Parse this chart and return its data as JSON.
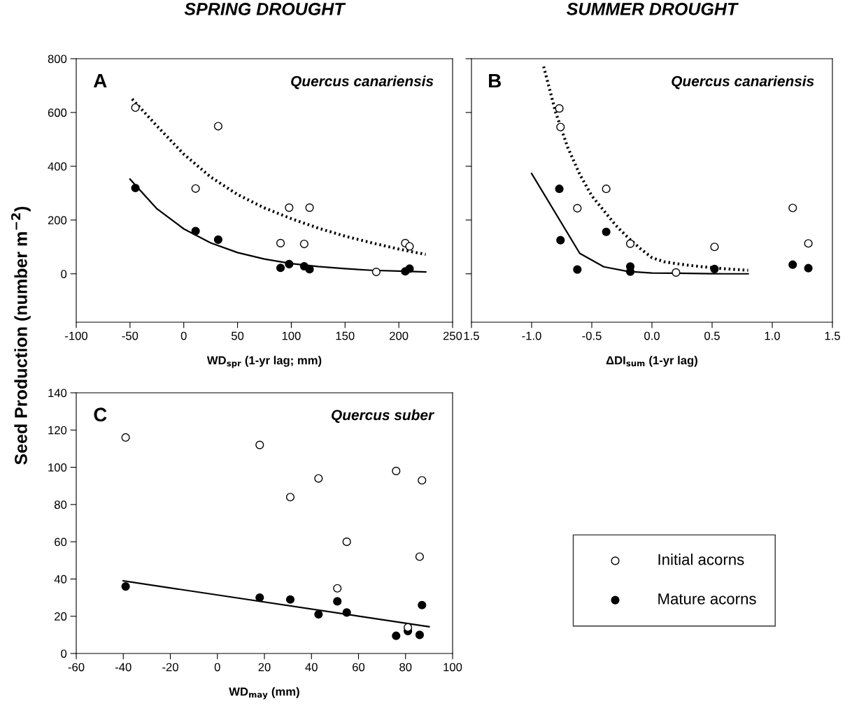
{
  "chart_data": [
    {
      "type": "scatter",
      "title": "SPRING DROUGHT",
      "xlabel": "WD$_{spr}$ (1-yr lag; mm)",
      "ylabel": "Seed Production (number m$^{−2}$)",
      "annotations": [
        "A",
        "Quercus canariensis"
      ],
      "xlim": [
        -100,
        250
      ],
      "xticks": [
        -100,
        -50,
        0,
        50,
        100,
        150,
        200,
        250
      ],
      "ylim": [
        -180,
        800
      ],
      "yticks": [
        0,
        200,
        400,
        600,
        800
      ],
      "grid": false,
      "series": [
        {
          "marker": "circle",
          "color": "#ffffff",
          "x": [
            -45,
            11,
            32,
            90,
            98,
            112,
            117,
            179,
            206,
            210
          ],
          "values": [
            618,
            317,
            549,
            114,
            246,
            111,
            246,
            7,
            114,
            102
          ]
        },
        {
          "type": "line",
          "marker": "none",
          "line_style": "dotted",
          "color": "#000000",
          "x": [
            -48,
            -25,
            0,
            25,
            50,
            75,
            100,
            125,
            150,
            175,
            200,
            225
          ],
          "values": [
            650,
            550,
            445,
            360,
            295,
            245,
            205,
            170,
            140,
            115,
            92,
            72
          ]
        },
        {
          "marker": "circle",
          "color": "#000000",
          "x": [
            -45,
            11,
            32,
            90,
            98,
            112,
            117,
            206,
            210
          ],
          "values": [
            319,
            159,
            127,
            22,
            36,
            28,
            17,
            9,
            19
          ]
        },
        {
          "type": "line",
          "marker": "none",
          "line_style": "solid",
          "color": "#000000",
          "x": [
            -50,
            -25,
            0,
            25,
            50,
            75,
            100,
            125,
            150,
            175,
            200,
            225
          ],
          "values": [
            352,
            242,
            167,
            115,
            79,
            55,
            38,
            27,
            19,
            13,
            10,
            7
          ]
        }
      ]
    },
    {
      "type": "scatter",
      "title": "SUMMER DROUGHT",
      "xlabel": "ΔDI$_{sum}$ (1-yr lag)",
      "annotations": [
        "B",
        "Quercus canariensis"
      ],
      "xlim": [
        -1.5,
        1.5
      ],
      "xticks": [
        {
          "value": -1.5,
          "label": "1.5"
        },
        {
          "value": -1.0,
          "label": "-1.0"
        },
        {
          "value": -0.5,
          "label": "-0.5"
        },
        {
          "value": 0.0,
          "label": "0.0"
        },
        {
          "value": 0.5,
          "label": "0.5"
        },
        {
          "value": 1.0,
          "label": "1.0"
        },
        {
          "value": 1.5,
          "label": "1.5"
        }
      ],
      "ylim": [
        -180,
        800
      ],
      "yticks": [
        0,
        200,
        400,
        600,
        800
      ],
      "tick_labels": "x",
      "grid": false,
      "series": [
        {
          "marker": "circle",
          "color": "#ffffff",
          "x": [
            -0.77,
            -0.76,
            -0.62,
            -0.38,
            -0.18,
            0.2,
            0.52,
            1.17,
            1.3
          ],
          "values": [
            615,
            546,
            244,
            316,
            112,
            5,
            100,
            245,
            113
          ]
        },
        {
          "type": "line",
          "marker": "none",
          "line_style": "dotted",
          "color": "#000000",
          "x": [
            -0.9,
            -0.8,
            -0.7,
            -0.6,
            -0.5,
            -0.4,
            -0.3,
            -0.2,
            -0.1,
            0.0,
            0.1,
            0.2,
            0.3,
            0.4,
            0.5,
            0.6,
            0.7,
            0.8
          ],
          "values": [
            771,
            600,
            470,
            370,
            290,
            235,
            180,
            135,
            95,
            60,
            45,
            38,
            32,
            27,
            23,
            19,
            16,
            13
          ]
        },
        {
          "marker": "circle",
          "color": "#000000",
          "x": [
            -0.77,
            -0.76,
            -0.62,
            -0.38,
            -0.18,
            -0.18,
            0.52,
            1.17,
            1.3
          ],
          "values": [
            316,
            125,
            16,
            156,
            27,
            8,
            18,
            34,
            21
          ]
        },
        {
          "type": "line",
          "marker": "none",
          "line_style": "solid",
          "color": "#000000",
          "x": [
            -1.0,
            -0.6,
            -0.4,
            -0.2,
            0.0,
            0.2,
            0.4,
            0.6,
            0.8
          ],
          "values": [
            373,
            76,
            26,
            9,
            3,
            2,
            1,
            0,
            0
          ]
        }
      ]
    },
    {
      "type": "scatter",
      "xlabel": "WD$_{may}$ (mm)",
      "annotations": [
        "C",
        "Quercus suber"
      ],
      "xlim": [
        -60,
        100
      ],
      "xticks": [
        -60,
        -40,
        -20,
        0,
        20,
        40,
        60,
        80,
        100
      ],
      "ylim": [
        0,
        140
      ],
      "yticks": [
        0,
        20,
        40,
        60,
        80,
        100,
        120,
        140
      ],
      "grid": false,
      "legend": "right",
      "series": [
        {
          "name": "Initial acorns",
          "marker": "circle",
          "color": "#ffffff",
          "x": [
            -39,
            18,
            31,
            43,
            51,
            55,
            76,
            81,
            86,
            87
          ],
          "values": [
            116,
            112,
            84,
            94,
            35,
            60,
            98,
            14,
            52,
            93
          ]
        },
        {
          "name": "Mature acorns",
          "marker": "circle",
          "color": "#000000",
          "x": [
            -39,
            18,
            31,
            43,
            51,
            55,
            76,
            81,
            86,
            87
          ],
          "values": [
            36,
            30,
            29,
            21,
            28,
            22,
            9.5,
            12,
            10,
            26
          ]
        },
        {
          "type": "line",
          "marker": "none",
          "line_style": "solid",
          "color": "#000000",
          "x": [
            -40,
            90
          ],
          "values": [
            39,
            14.4
          ]
        }
      ]
    }
  ]
}
